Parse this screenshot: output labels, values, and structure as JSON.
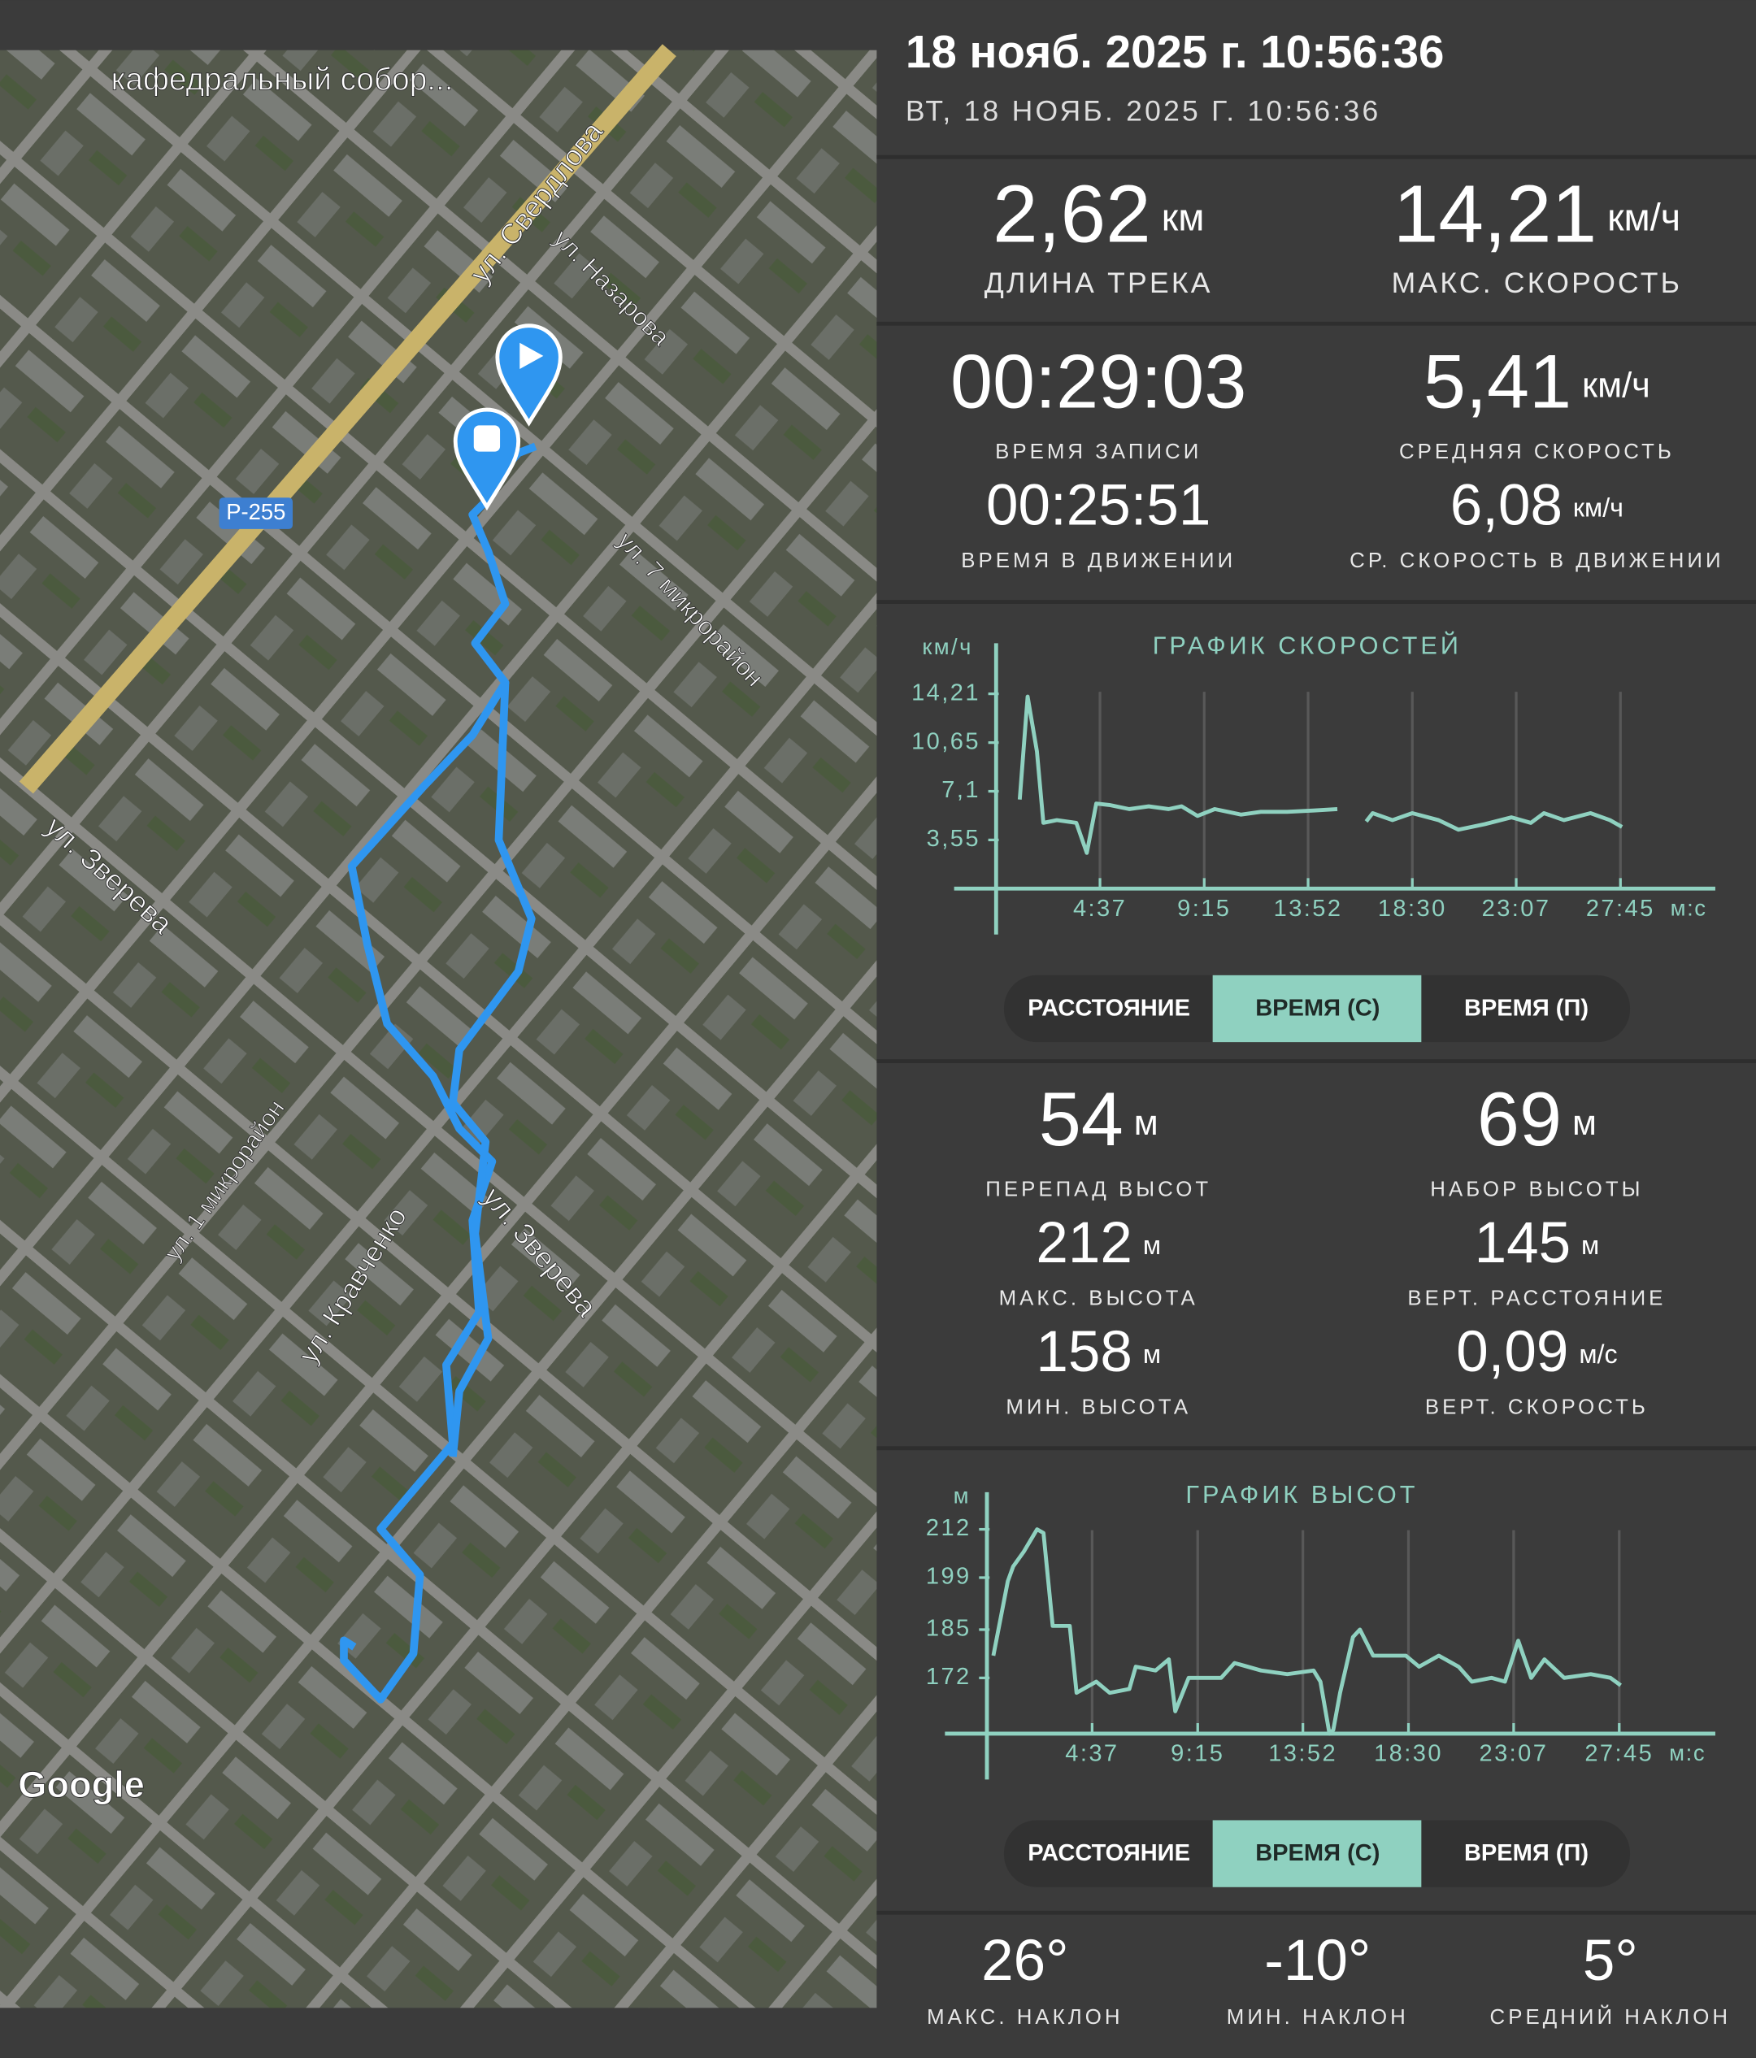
{
  "header": {
    "title": "18 нояб. 2025 г. 10:56:36",
    "subtitle": "ВТ, 18 НОЯБ. 2025 Г. 10:56:36"
  },
  "map": {
    "labels": [
      "кафедральный собор...",
      "ул. Свердлова",
      "ул. Назарова",
      "Р-255",
      "ул. 7 микрорайон",
      "ул. Зверева",
      "ул. 1 микрорайон",
      "ул. Кравченко",
      "ул. Зверева",
      "Google"
    ]
  },
  "stats": [
    {
      "value": "2,62",
      "unit": "км",
      "label": "ДЛИНА ТРЕКА"
    },
    {
      "value": "14,21",
      "unit": "км/ч",
      "label": "МАКС. СКОРОСТЬ"
    },
    {
      "value": "00:29:03",
      "label": "ВРЕМЯ ЗАПИСИ"
    },
    {
      "value": "5,41",
      "unit": "км/ч",
      "label": "СРЕДНЯЯ СКОРОСТЬ"
    },
    {
      "value": "00:25:51",
      "label": "ВРЕМЯ В ДВИЖЕНИИ"
    },
    {
      "value": "6,08",
      "unit": "км/ч",
      "label": "СР. СКОРОСТЬ В ДВИЖЕНИИ"
    },
    {
      "value": "54",
      "unit": "м",
      "label": "ПЕРЕПАД ВЫСОТ"
    },
    {
      "value": "69",
      "unit": "м",
      "label": "НАБОР ВЫСОТЫ"
    },
    {
      "value": "212",
      "unit": "м",
      "label": "МАКС. ВЫСОТА"
    },
    {
      "value": "145",
      "unit": "м",
      "label": "ВЕРТ. РАССТОЯНИЕ"
    },
    {
      "value": "158",
      "unit": "м",
      "label": "МИН. ВЫСОТА"
    },
    {
      "value": "0,09",
      "unit": "м/с",
      "label": "ВЕРТ. СКОРОСТЬ"
    },
    {
      "value": "26°",
      "label": "МАКС. НАКЛОН"
    },
    {
      "value": "-10°",
      "label": "МИН. НАКЛОН"
    },
    {
      "value": "5°",
      "label": "СРЕДНИЙ НАКЛОН"
    }
  ],
  "speed_chart": {
    "type": "line",
    "title": "ГРАФИК СКОРОСТЕЙ",
    "y_label": "км/ч",
    "x_unit": "м:с",
    "color": "#8fd1c0",
    "x": [
      63,
      84,
      109,
      126,
      162,
      214,
      242,
      267,
      302,
      355,
      407,
      460,
      495,
      537,
      583,
      653,
      706,
      776,
      847,
      910,
      950,
      987,
      1004,
      1057,
      1110,
      1180,
      1233,
      1303,
      1374,
      1426,
      1461,
      1514,
      1585,
      1637,
      1669
    ],
    "values": [
      6.5,
      14,
      10,
      4.8,
      5,
      4.8,
      2.6,
      6.2,
      6.1,
      5.8,
      6,
      5.8,
      6,
      5.3,
      5.8,
      5.4,
      5.6,
      5.6,
      5.7,
      5.8,
      null,
      4.9,
      5.5,
      5,
      5.5,
      5,
      4.3,
      4.7,
      5.2,
      4.8,
      5.5,
      5,
      5.5,
      5,
      4.5
    ],
    "xlim": [
      0,
      1918
    ],
    "ylim": [
      0,
      17.9
    ],
    "xticks": [
      {
        "value": 277,
        "label": "4:37"
      },
      {
        "value": 555,
        "label": "9:15"
      },
      {
        "value": 832,
        "label": "13:52"
      },
      {
        "value": 1110,
        "label": "18:30"
      },
      {
        "value": 1387,
        "label": "23:07"
      },
      {
        "value": 1665,
        "label": "27:45"
      }
    ],
    "yticks": [
      {
        "value": 14.21,
        "label": "14,21"
      },
      {
        "value": 10.65,
        "label": "10,65"
      },
      {
        "value": 7.1,
        "label": "7,1"
      },
      {
        "value": 3.55,
        "label": "3,55"
      }
    ],
    "grid": true,
    "toggle": {
      "options": [
        "РАССТОЯНИЕ",
        "ВРЕМЯ (С)",
        "ВРЕМЯ (П)"
      ],
      "selected": 1
    }
  },
  "elevation_chart": {
    "type": "line",
    "title": "ГРАФИК ВЫСОТ",
    "y_label": "м",
    "x_unit": "м:с",
    "color": "#8fd1c0",
    "x": [
      17,
      55,
      69,
      97,
      132,
      149,
      173,
      218,
      236,
      288,
      323,
      375,
      392,
      444,
      479,
      496,
      531,
      617,
      652,
      722,
      791,
      860,
      878,
      902,
      912,
      930,
      964,
      982,
      1017,
      1103,
      1138,
      1190,
      1242,
      1277,
      1329,
      1364,
      1399,
      1433,
      1468,
      1520,
      1590,
      1642,
      1669
    ],
    "values": [
      178,
      198,
      202,
      206,
      212,
      211,
      186,
      186,
      168,
      171,
      168,
      169,
      175,
      174,
      177,
      163,
      172,
      172,
      176,
      174,
      173,
      174,
      171,
      157,
      158,
      168,
      183,
      185,
      178,
      178,
      175,
      178,
      175,
      171,
      172,
      171,
      182,
      172,
      177,
      172,
      173,
      172,
      170
    ],
    "xlim": [
      0,
      1918
    ],
    "ylim": [
      157,
      222
    ],
    "xticks": [
      {
        "value": 277,
        "label": "4:37"
      },
      {
        "value": 555,
        "label": "9:15"
      },
      {
        "value": 832,
        "label": "13:52"
      },
      {
        "value": 1110,
        "label": "18:30"
      },
      {
        "value": 1387,
        "label": "23:07"
      },
      {
        "value": 1665,
        "label": "27:45"
      }
    ],
    "yticks": [
      212,
      199,
      185,
      172
    ],
    "grid": true,
    "toggle": {
      "options": [
        "РАССТОЯНИЕ",
        "ВРЕМЯ (С)",
        "ВРЕМЯ (П)"
      ],
      "selected": 1
    }
  }
}
